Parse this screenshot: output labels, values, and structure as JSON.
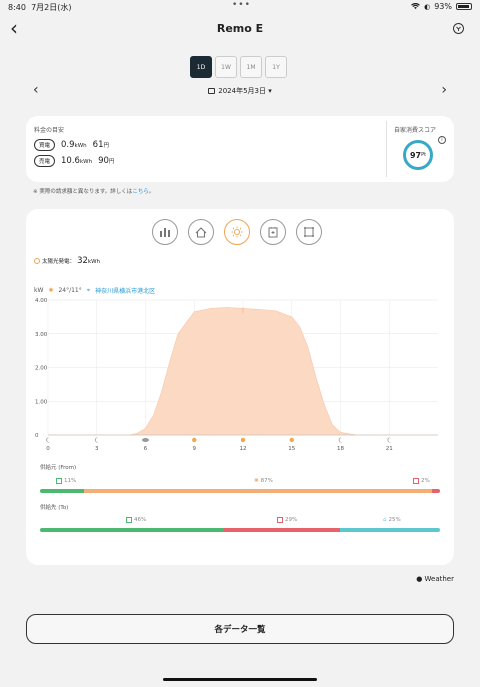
{
  "status_bar": {
    "time": "8:40",
    "date": "7月2日(水)",
    "dots": "•••",
    "battery": "93%"
  },
  "header": {
    "title": "Remo E",
    "back": "‹"
  },
  "period_tabs": [
    "1D",
    "1W",
    "1M",
    "1Y"
  ],
  "date_nav": {
    "label": "2024年5月3日 ▾",
    "prev": "‹",
    "next": "›"
  },
  "charges": {
    "title": "料金の目安",
    "buy": {
      "label": "買電",
      "kwh": "0.9",
      "kwh_unit": "kWh",
      "yen": "61",
      "yen_unit": "円"
    },
    "sell": {
      "label": "売電",
      "kwh": "10.6",
      "kwh_unit": "kWh",
      "yen": "90",
      "yen_unit": "円"
    },
    "score_title": "自家消費スコア",
    "score_value": "97",
    "score_unit": "Pt",
    "info_icon": "i"
  },
  "note": {
    "text": "※ 実際の請求額と異なります。詳しくは",
    "link": "こちら",
    "end": "。"
  },
  "chart_card": {
    "categories": [
      "usage-icon",
      "home-icon",
      "sun-icon",
      "battery-icon",
      "grid-icon"
    ],
    "summary_label": "太陽光発電：",
    "summary_value": "32",
    "summary_unit": "kWh",
    "unit_label": "kW",
    "weather_now": "24°/11°",
    "location": "神奈川県横浜市港北区",
    "from_label": "供給元 (From)",
    "from": [
      {
        "name": "battery",
        "pct": "11%",
        "color": "#4cb872",
        "share": 11
      },
      {
        "name": "solar",
        "pct": "87%",
        "color": "#f3ad75",
        "share": 87
      },
      {
        "name": "grid",
        "pct": "2%",
        "color": "#e4626a",
        "share": 2
      }
    ],
    "to_label": "供給先 (To)",
    "to": [
      {
        "name": "battery",
        "pct": "46%",
        "color": "#4cb872",
        "share": 46
      },
      {
        "name": "grid",
        "pct": "29%",
        "color": "#e4626a",
        "share": 29
      },
      {
        "name": "home",
        "pct": "25%",
        "color": "#5cc7ce",
        "share": 25
      }
    ]
  },
  "chart_data": {
    "type": "area",
    "x": [
      0,
      1,
      2,
      3,
      4,
      5,
      5.5,
      6,
      6.5,
      7,
      7.5,
      8,
      9,
      10,
      11,
      12,
      13,
      14,
      15,
      15.5,
      16,
      16.5,
      17,
      17.5,
      18,
      19,
      20,
      21,
      22,
      23,
      24
    ],
    "values": [
      0,
      0,
      0,
      0,
      0,
      0,
      0.05,
      0.2,
      0.6,
      1.3,
      2.2,
      3.0,
      3.65,
      3.75,
      3.78,
      3.75,
      3.72,
      3.68,
      3.5,
      3.2,
      2.6,
      1.7,
      0.9,
      0.3,
      0.08,
      0,
      0,
      0,
      0,
      0,
      0
    ],
    "ylabel": "kW",
    "ylim": [
      0,
      4.0
    ],
    "yticks": [
      "4.00",
      "3.00",
      "2.00",
      "1.00",
      "0"
    ],
    "xlim": [
      0,
      24
    ],
    "xticks": [
      "0",
      "3",
      "6",
      "9",
      "12",
      "15",
      "18",
      "21"
    ],
    "weather_icons": [
      "moon",
      "moon",
      "cloud",
      "sun",
      "sun",
      "sun",
      "moon",
      "moon"
    ],
    "color": "#fcd9c3",
    "grid": true
  },
  "weather_credit": " Weather",
  "list_button": "各データ一覧"
}
